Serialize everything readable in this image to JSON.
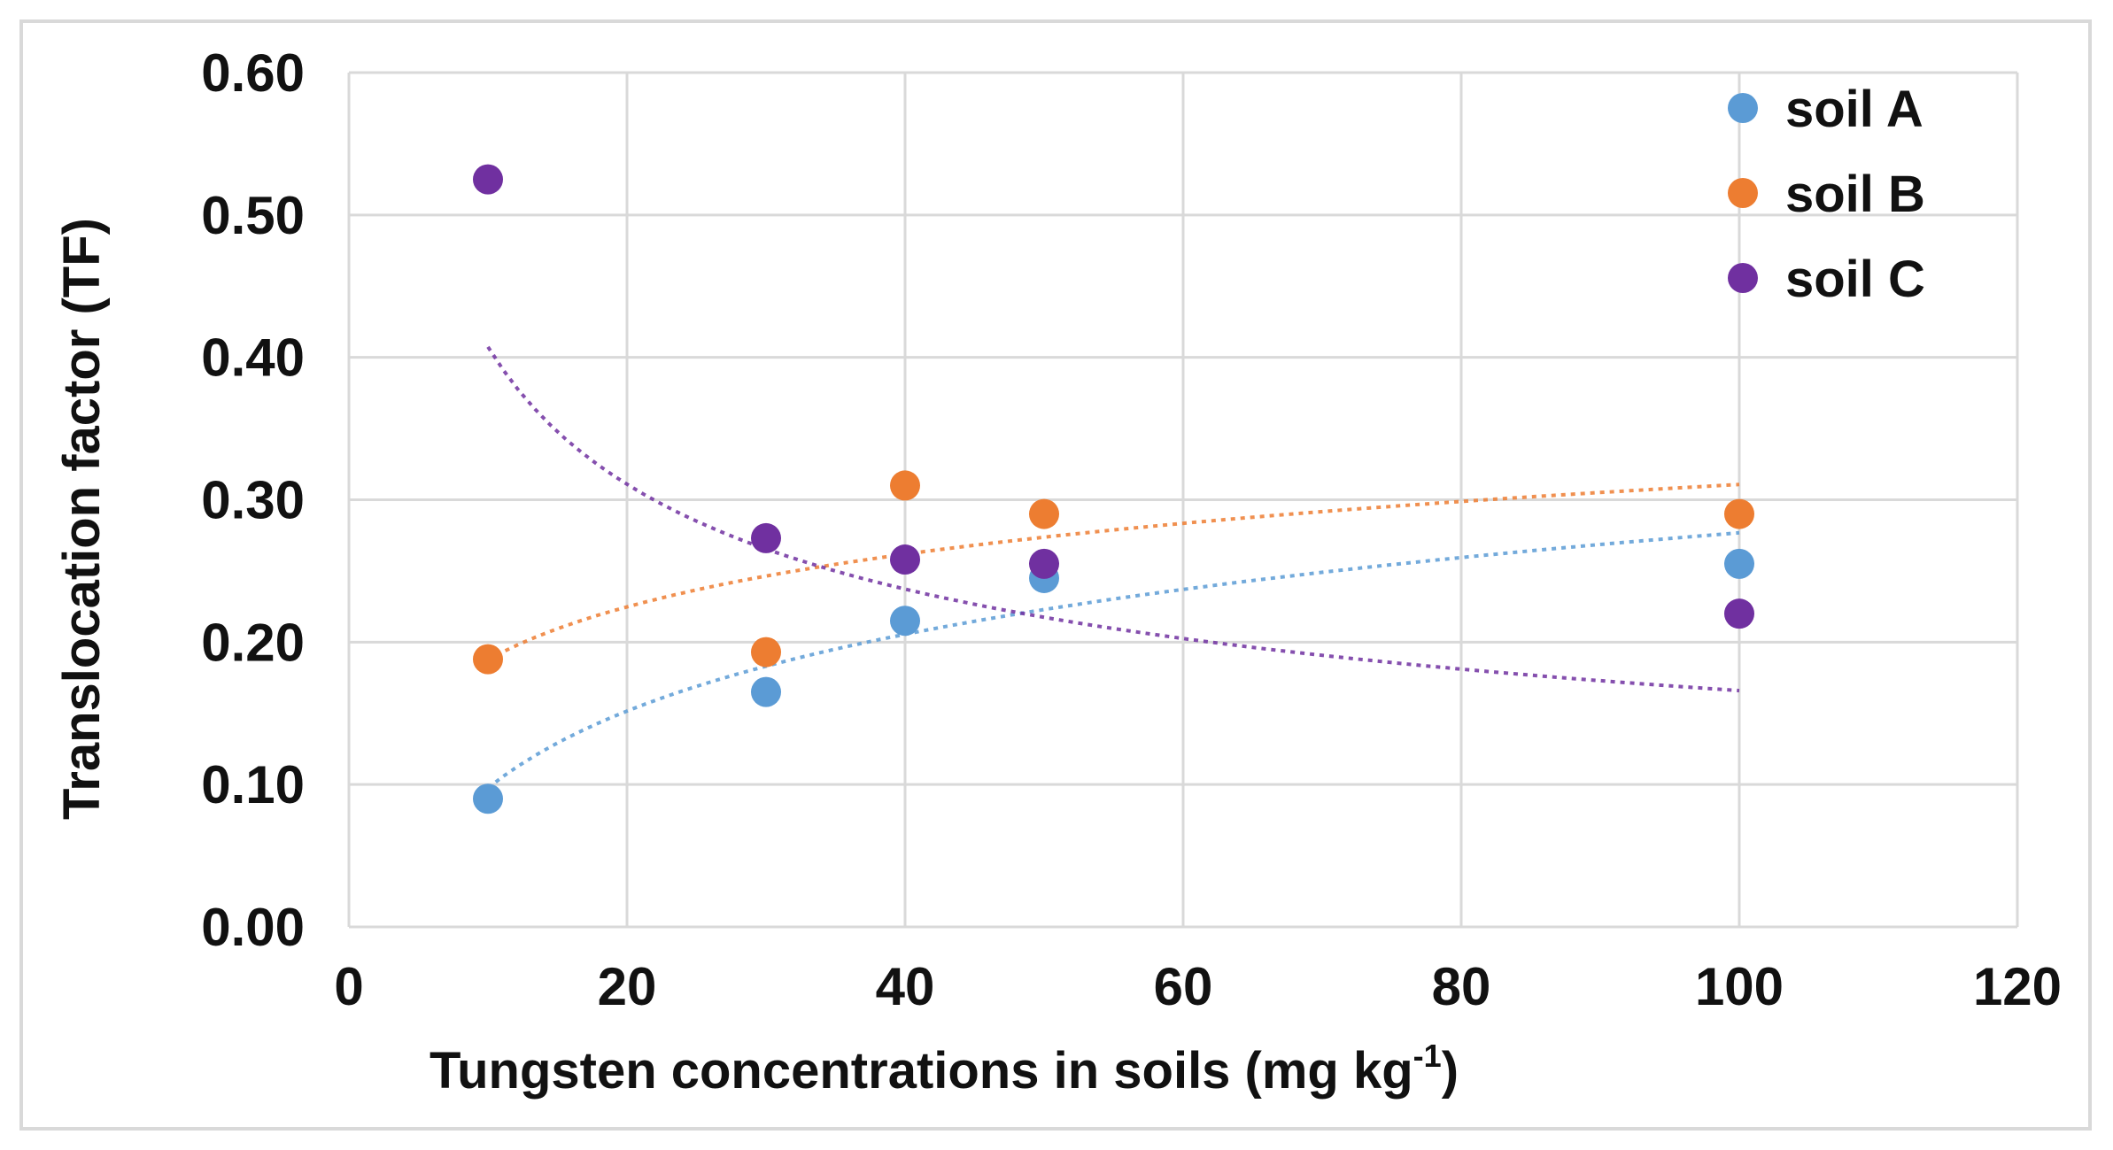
{
  "chart_data": {
    "type": "scatter",
    "title": "",
    "xlabel": "Tungsten concentrations  in soils (mg kg",
    "xlabel_sup": "-1",
    "xlabel_end": ")",
    "ylabel": "Translocation factor (TF)",
    "xlim": [
      0,
      120
    ],
    "ylim": [
      0,
      0.6
    ],
    "xticks": [
      0,
      20,
      40,
      60,
      80,
      100,
      120
    ],
    "yticks": [
      0,
      0.1,
      0.2,
      0.3,
      0.4,
      0.5,
      0.6
    ],
    "ytick_labels": [
      "0.00",
      "0.10",
      "0.20",
      "0.30",
      "0.40",
      "0.50",
      "0.60"
    ],
    "xtick_labels": [
      "0",
      "20",
      "40",
      "60",
      "80",
      "100",
      "120"
    ],
    "grid": true,
    "legend_position": "top-right",
    "series": [
      {
        "name": "soil A",
        "color": "#5b9bd5",
        "x": [
          10,
          30,
          40,
          50,
          100
        ],
        "y": [
          0.09,
          0.165,
          0.215,
          0.245,
          0.255
        ],
        "trendline": {
          "type": "logarithmic",
          "a": 0.0778,
          "b": -0.0815,
          "x_range": [
            10,
            100
          ]
        }
      },
      {
        "name": "soil B",
        "color": "#ed7d31",
        "x": [
          10,
          30,
          40,
          50,
          100
        ],
        "y": [
          0.188,
          0.193,
          0.31,
          0.29,
          0.29
        ],
        "trendline": {
          "type": "logarithmic",
          "a": 0.0534,
          "b": 0.0648,
          "x_range": [
            10,
            100
          ]
        }
      },
      {
        "name": "soil C",
        "color": "#7030a0",
        "x": [
          10,
          30,
          40,
          50,
          100
        ],
        "y": [
          0.525,
          0.273,
          0.258,
          0.255,
          0.22
        ],
        "trendline": {
          "type": "power",
          "a": 1.0,
          "b": -0.39,
          "x_range": [
            10,
            100
          ]
        }
      }
    ]
  }
}
